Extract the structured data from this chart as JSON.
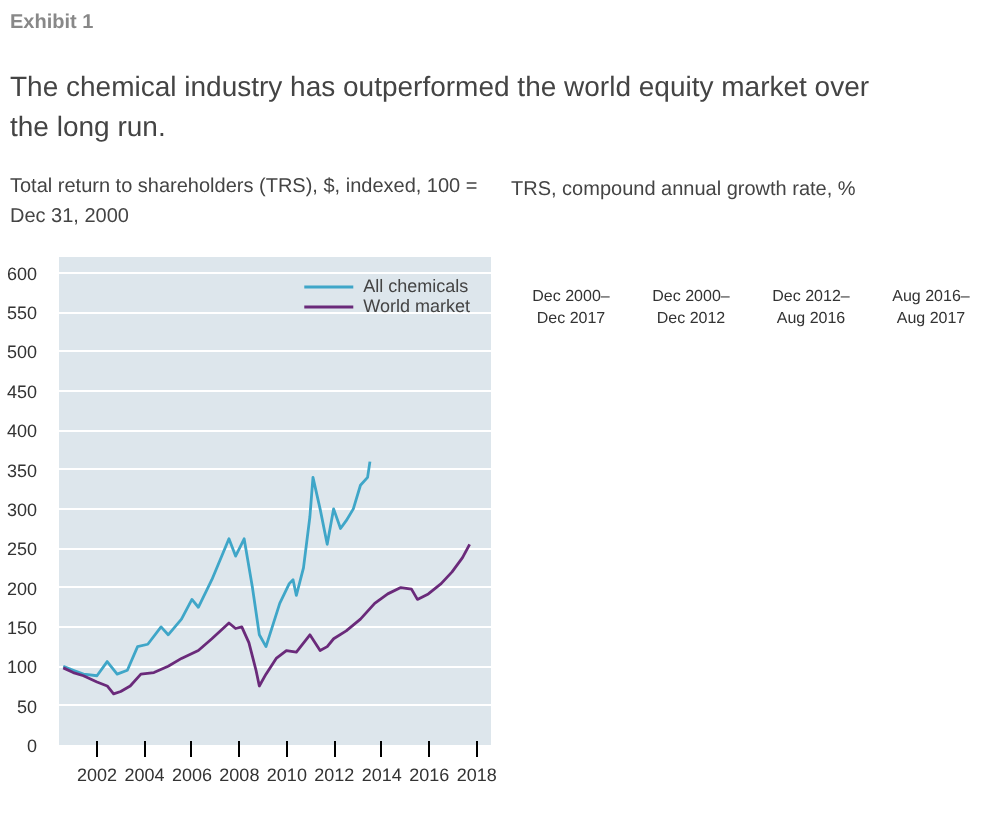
{
  "chart_data": [
    {
      "type": "line",
      "title": "The chemical industry has outperformed the world equity market over the long run.",
      "subtitle": "Total return to shareholders (TRS), $, indexed, 100 = Dec 31, 2000",
      "annotations": [
        "Exhibit 1"
      ],
      "xlim": [
        2000.4,
        2018.6
      ],
      "xticks": [
        2002,
        2004,
        2006,
        2008,
        2010,
        2012,
        2014,
        2016,
        2018
      ],
      "ylim": [
        0,
        620
      ],
      "yticks": [
        0,
        50,
        100,
        150,
        200,
        250,
        300,
        350,
        400,
        450,
        500,
        550,
        600
      ],
      "grid": "y",
      "legend": "top right",
      "series": [
        {
          "name": "All chemicals",
          "color": "#3fa6c8",
          "x": [
            2000.58,
            2001.0,
            2001.43,
            2002.0,
            2002.43,
            2002.85,
            2003.28,
            2003.71,
            2004.14,
            2004.7,
            2005.0,
            2005.56,
            2006.0,
            2006.27,
            2006.84,
            2007.56,
            2007.84,
            2008.2,
            2008.55,
            2008.84,
            2009.12,
            2009.7,
            2010.1,
            2010.26,
            2010.4,
            2010.7,
            2010.97,
            2011.1,
            2011.4,
            2011.7,
            2011.97,
            2012.26,
            2012.5,
            2012.8,
            2013.1,
            2013.4,
            2013.5
          ],
          "values": [
            100,
            95,
            90,
            88,
            106,
            90,
            95,
            125,
            128,
            150,
            140,
            160,
            185,
            175,
            210,
            262,
            240,
            262,
            200,
            140,
            125,
            180,
            205,
            210,
            190,
            225,
            290,
            340,
            300,
            255,
            300,
            275,
            285,
            300,
            330,
            340,
            360
          ]
        },
        {
          "name": "World market",
          "color": "#6a2a7a",
          "x": [
            2000.58,
            2001.0,
            2001.43,
            2002.0,
            2002.43,
            2002.7,
            2003.0,
            2003.4,
            2003.85,
            2004.4,
            2005.0,
            2005.56,
            2006.27,
            2006.84,
            2007.56,
            2007.84,
            2008.1,
            2008.4,
            2008.7,
            2008.84,
            2009.12,
            2009.55,
            2009.98,
            2010.4,
            2010.97,
            2011.4,
            2011.7,
            2011.97,
            2012.5,
            2013.1,
            2013.7,
            2014.25,
            2014.8,
            2015.25,
            2015.5,
            2015.96,
            2016.5,
            2016.96,
            2017.4,
            2017.7
          ],
          "values": [
            98,
            92,
            88,
            80,
            75,
            65,
            68,
            75,
            90,
            92,
            100,
            110,
            120,
            135,
            155,
            148,
            150,
            130,
            95,
            75,
            90,
            110,
            120,
            118,
            140,
            120,
            125,
            135,
            145,
            160,
            180,
            192,
            200,
            198,
            185,
            192,
            205,
            220,
            238,
            255
          ]
        }
      ]
    },
    {
      "type": "other",
      "title": "TRS, compound annual growth rate, %",
      "annotations": [
        "Dec 2000–Dec 2017",
        "Dec 2000–Dec 2012",
        "Dec 2012–Aug 2016",
        "Aug 2016–Aug 2017"
      ]
    }
  ]
}
